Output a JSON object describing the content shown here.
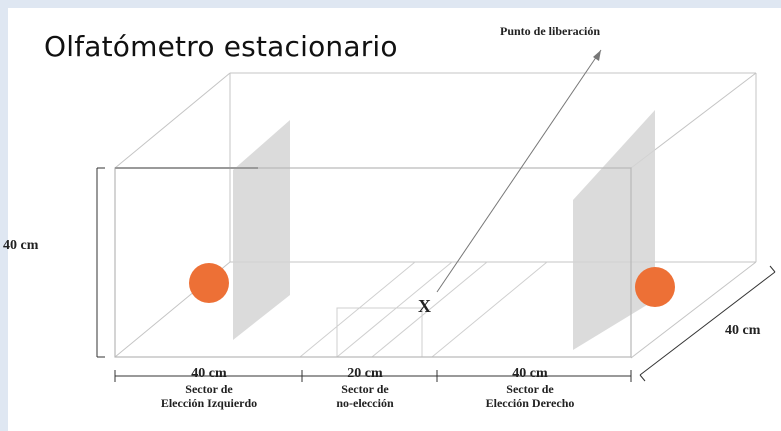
{
  "title": "Olfatómetro estacionario",
  "labels": {
    "release_point": "Punto de liberación",
    "height": "40 cm",
    "depth": "40 cm",
    "release_mark": "X"
  },
  "sectors": [
    {
      "length": "40 cm",
      "name_line1": "Sector de",
      "name_line2": "Elección Izquierdo"
    },
    {
      "length": "20 cm",
      "name_line1": "Sector de",
      "name_line2": "no-elección"
    },
    {
      "length": "40 cm",
      "name_line1": "Sector de",
      "name_line2": "Elección Derecho"
    }
  ],
  "colors": {
    "odor_source": "#ed7036",
    "partition": "#d5d5d5",
    "box_edge": "#b8b8b8",
    "background": "#dfe7f2"
  }
}
